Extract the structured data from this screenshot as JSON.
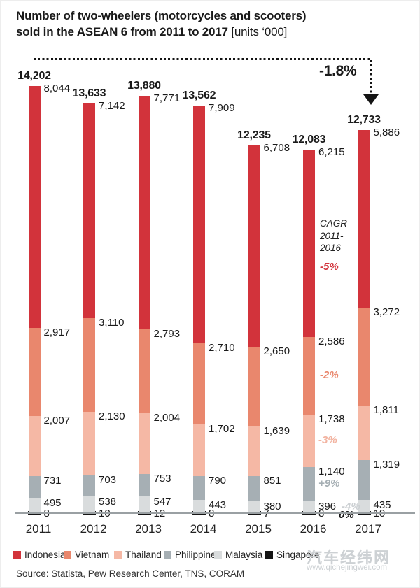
{
  "title": {
    "line1": "Number of two-wheelers (motorcycles and scooters)",
    "line2_bold": "sold in the ASEAN 6 from 2011 to 2017",
    "line2_suffix": " [units ‘000]"
  },
  "overall_change": {
    "label": "-1.8%"
  },
  "cagr_note": {
    "line1": "CAGR",
    "line2": "2011-",
    "line3": "2016"
  },
  "chart_data": {
    "type": "bar",
    "stacked": true,
    "unit": "units '000",
    "categories": [
      "2011",
      "2012",
      "2013",
      "2014",
      "2015",
      "2016",
      "2017"
    ],
    "totals": [
      14202,
      13633,
      13880,
      13562,
      12235,
      12083,
      12733
    ],
    "series": [
      {
        "name": "Indonesia",
        "color": "#d2333b",
        "values": [
          8044,
          7142,
          7771,
          7909,
          6708,
          6215,
          5886
        ],
        "cagr_2011_2016": "-5%",
        "cagr_color": "#d2333b"
      },
      {
        "name": "Vietnam",
        "color": "#e9876d",
        "values": [
          2917,
          3110,
          2793,
          2710,
          2650,
          2586,
          3272
        ],
        "cagr_2011_2016": "-2%",
        "cagr_color": "#e9876d"
      },
      {
        "name": "Thailand",
        "color": "#f5b8a5",
        "values": [
          2007,
          2130,
          2004,
          1702,
          1639,
          1738,
          1811
        ],
        "cagr_2011_2016": "-3%",
        "cagr_color": "#f2b3a0"
      },
      {
        "name": "Philippines",
        "color": "#a6afb4",
        "values": [
          731,
          703,
          753,
          790,
          851,
          1140,
          1319
        ],
        "cagr_2011_2016": "+9%",
        "cagr_color": "#a6afb4"
      },
      {
        "name": "Malaysia",
        "color": "#d9dcdd",
        "values": [
          495,
          538,
          547,
          443,
          380,
          396,
          435
        ],
        "cagr_2011_2016": "-4%",
        "cagr_color": "#ccd0d3"
      },
      {
        "name": "Singapore",
        "color": "#141414",
        "values": [
          8,
          10,
          12,
          8,
          7,
          8,
          10
        ],
        "cagr_2011_2016": "0%",
        "cagr_color": "#141414"
      }
    ],
    "overall_change_2016_2017": "-1.8%",
    "legend_position": "bottom",
    "grid": false
  },
  "legend": {
    "items": [
      "Indonesia",
      "Vietnam",
      "Thailand",
      "Philippines",
      "Malaysia",
      "Singapore"
    ]
  },
  "source": "Source: Statista, Pew Research Center, TNS, CORAM",
  "watermark": {
    "name": "汽车经纬网",
    "url": "www.qichejingwei.com"
  }
}
